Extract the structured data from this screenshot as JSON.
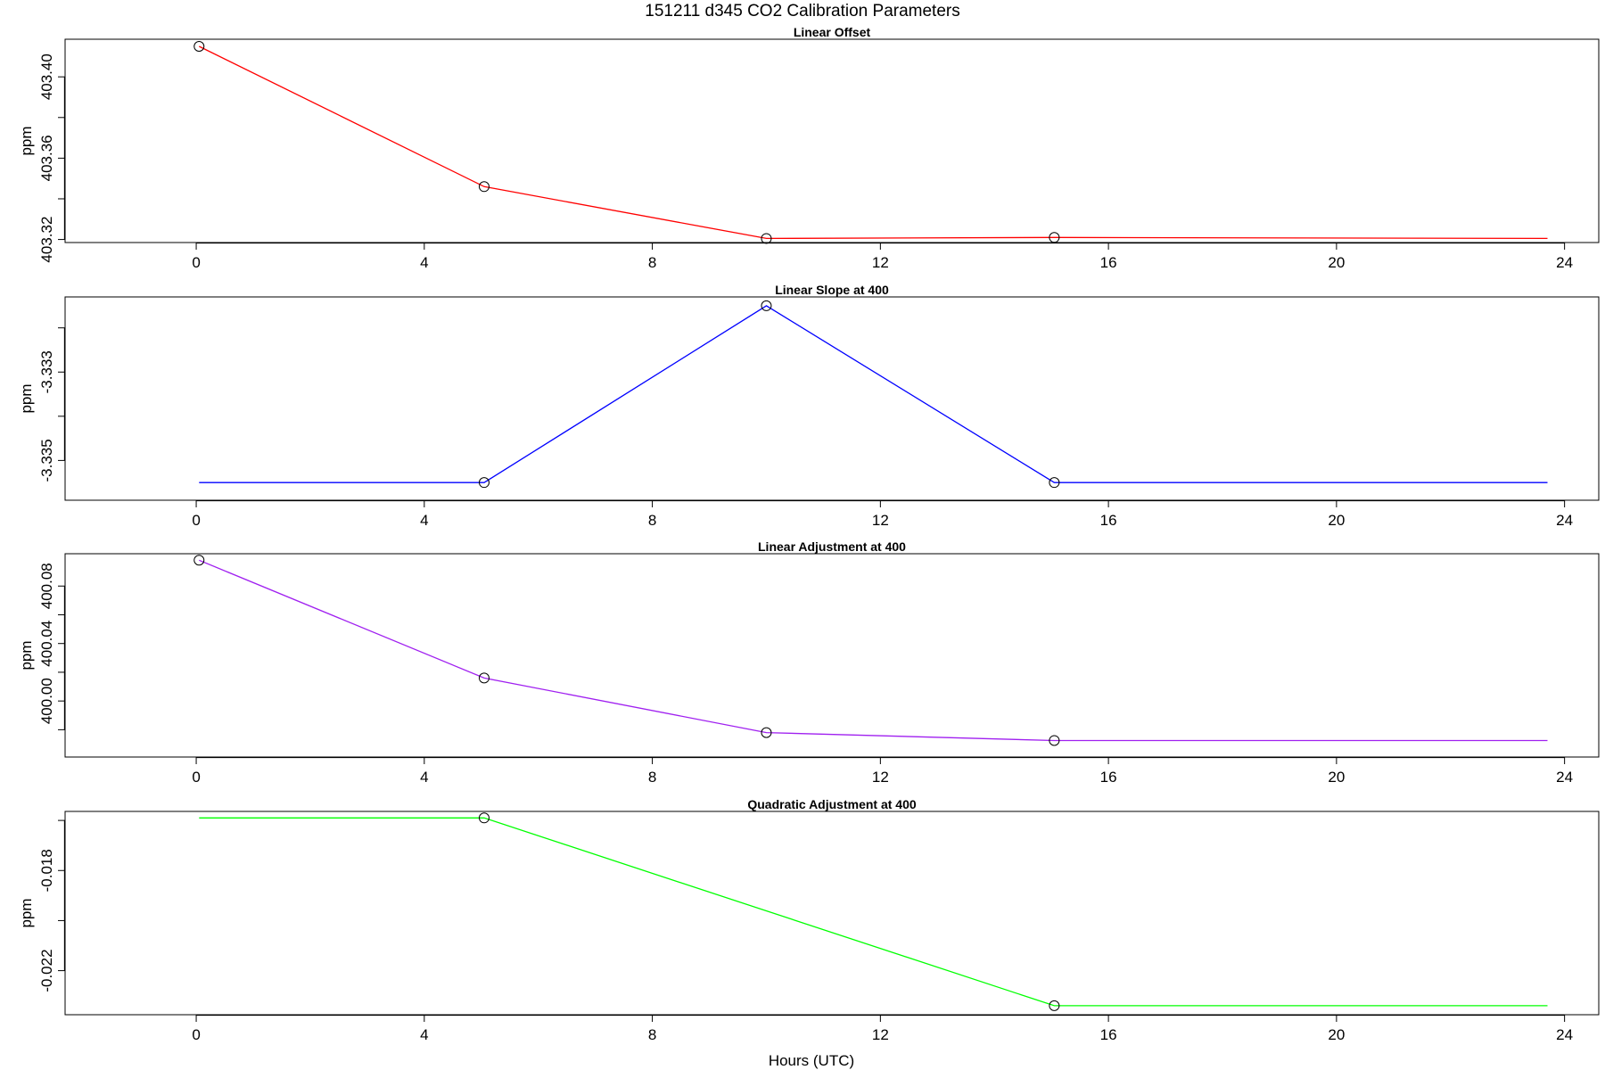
{
  "figure": {
    "title": "151211   d345   CO2 Calibration Parameters",
    "xlabel": "Hours (UTC)"
  },
  "chart_data": [
    {
      "type": "line",
      "title": "Linear Offset",
      "ylabel": "ppm",
      "xlim": [
        -2.3,
        24.6
      ],
      "ylim": [
        403.3185,
        403.4185
      ],
      "xticks": [
        0,
        4,
        8,
        12,
        16,
        20,
        24
      ],
      "yticks": [
        "403.32",
        "403.36",
        "403.40"
      ],
      "yminor": [
        403.3,
        403.34,
        403.38,
        403.42
      ],
      "color": "#ff0000",
      "line": {
        "x": [
          0.05,
          5.05,
          10.0,
          15.05,
          23.7
        ],
        "y": [
          403.415,
          403.346,
          403.3205,
          403.321,
          403.3205
        ]
      },
      "points": {
        "x": [
          0.05,
          5.05,
          10.0,
          15.05
        ],
        "y": [
          403.415,
          403.346,
          403.3205,
          403.321
        ]
      }
    },
    {
      "type": "line",
      "title": "Linear Slope at 400",
      "ylabel": "ppm",
      "xlim": [
        -2.3,
        24.6
      ],
      "ylim": [
        -3.3359,
        -3.3313
      ],
      "xticks": [
        0,
        4,
        8,
        12,
        16,
        20,
        24
      ],
      "yticks": [
        "-3.335",
        "-3.333"
      ],
      "yminor": [
        -3.334,
        -3.332
      ],
      "color": "#0000ff",
      "line": {
        "x": [
          0.05,
          5.05,
          10.0,
          15.05,
          23.7
        ],
        "y": [
          -3.3355,
          -3.3355,
          -3.3315,
          -3.3355,
          -3.3355
        ]
      },
      "points": {
        "x": [
          5.05,
          10.0,
          15.05
        ],
        "y": [
          -3.3355,
          -3.3315,
          -3.3355
        ]
      }
    },
    {
      "type": "line",
      "title": "Linear Adjustment at 400",
      "ylabel": "ppm",
      "xlim": [
        -2.3,
        24.6
      ],
      "ylim": [
        399.961,
        400.1025
      ],
      "xticks": [
        0,
        4,
        8,
        12,
        16,
        20,
        24
      ],
      "yticks": [
        "400.00",
        "400.04",
        "400.08"
      ],
      "yminor": [
        399.98,
        400.02,
        400.06
      ],
      "color": "#a020f0",
      "line": {
        "x": [
          0.05,
          5.05,
          10.0,
          15.05,
          23.7
        ],
        "y": [
          400.098,
          400.016,
          399.978,
          399.9725,
          399.9725
        ]
      },
      "points": {
        "x": [
          0.05,
          5.05,
          10.0,
          15.05
        ],
        "y": [
          400.098,
          400.016,
          399.978,
          399.9725
        ]
      }
    },
    {
      "type": "line",
      "title": "Quadratic Adjustment at 400",
      "ylabel": "ppm",
      "xlim": [
        -2.3,
        24.6
      ],
      "ylim": [
        -0.02376,
        -0.01564
      ],
      "xticks": [
        0,
        4,
        8,
        12,
        16,
        20,
        24
      ],
      "yticks": [
        "-0.022",
        "-0.018"
      ],
      "yminor": [
        -0.02,
        -0.016
      ],
      "color": "#00ff00",
      "line": {
        "x": [
          0.05,
          5.05,
          15.05,
          23.7
        ],
        "y": [
          -0.0159,
          -0.0159,
          -0.0234,
          -0.0234
        ]
      },
      "points": {
        "x": [
          5.05,
          15.05
        ],
        "y": [
          -0.0159,
          -0.0234
        ]
      }
    }
  ]
}
